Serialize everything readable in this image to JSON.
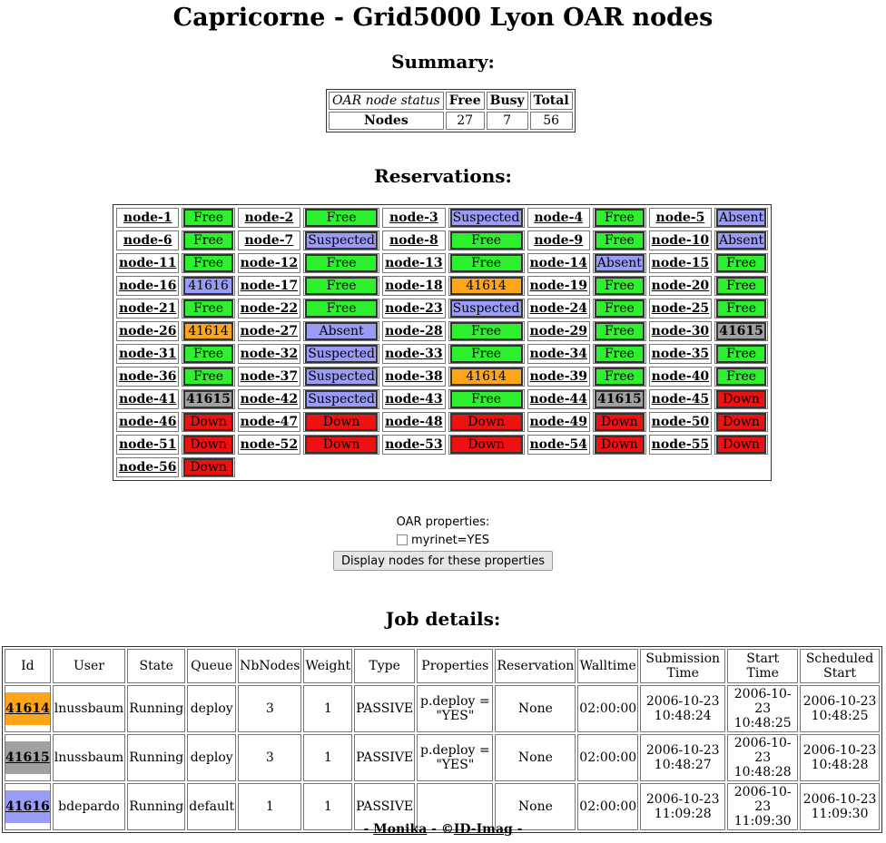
{
  "title": "Capricorne - Grid5000 Lyon OAR nodes",
  "summary": {
    "heading": "Summary:",
    "headers": [
      "OAR node status",
      "Free",
      "Busy",
      "Total"
    ],
    "row_label": "Nodes",
    "free": "27",
    "busy": "7",
    "total": "56"
  },
  "reservations": {
    "heading": "Reservations:",
    "nodes": [
      {
        "name": "node-1",
        "state": "Free",
        "kind": "free"
      },
      {
        "name": "node-2",
        "state": "Free",
        "kind": "free"
      },
      {
        "name": "node-3",
        "state": "Suspected",
        "kind": "suspected"
      },
      {
        "name": "node-4",
        "state": "Free",
        "kind": "free"
      },
      {
        "name": "node-5",
        "state": "Absent",
        "kind": "absent"
      },
      {
        "name": "node-6",
        "state": "Free",
        "kind": "free"
      },
      {
        "name": "node-7",
        "state": "Suspected",
        "kind": "suspected"
      },
      {
        "name": "node-8",
        "state": "Free",
        "kind": "free"
      },
      {
        "name": "node-9",
        "state": "Free",
        "kind": "free"
      },
      {
        "name": "node-10",
        "state": "Absent",
        "kind": "absent"
      },
      {
        "name": "node-11",
        "state": "Free",
        "kind": "free"
      },
      {
        "name": "node-12",
        "state": "Free",
        "kind": "free"
      },
      {
        "name": "node-13",
        "state": "Free",
        "kind": "free"
      },
      {
        "name": "node-14",
        "state": "Absent",
        "kind": "absent"
      },
      {
        "name": "node-15",
        "state": "Free",
        "kind": "free"
      },
      {
        "name": "node-16",
        "state": "41616",
        "kind": "jobP"
      },
      {
        "name": "node-17",
        "state": "Free",
        "kind": "free"
      },
      {
        "name": "node-18",
        "state": "41614",
        "kind": "jobO"
      },
      {
        "name": "node-19",
        "state": "Free",
        "kind": "free"
      },
      {
        "name": "node-20",
        "state": "Free",
        "kind": "free"
      },
      {
        "name": "node-21",
        "state": "Free",
        "kind": "free"
      },
      {
        "name": "node-22",
        "state": "Free",
        "kind": "free"
      },
      {
        "name": "node-23",
        "state": "Suspected",
        "kind": "suspected"
      },
      {
        "name": "node-24",
        "state": "Free",
        "kind": "free"
      },
      {
        "name": "node-25",
        "state": "Free",
        "kind": "free"
      },
      {
        "name": "node-26",
        "state": "41614",
        "kind": "jobO"
      },
      {
        "name": "node-27",
        "state": "Absent",
        "kind": "absent"
      },
      {
        "name": "node-28",
        "state": "Free",
        "kind": "free"
      },
      {
        "name": "node-29",
        "state": "Free",
        "kind": "free"
      },
      {
        "name": "node-30",
        "state": "41615",
        "kind": "jobG"
      },
      {
        "name": "node-31",
        "state": "Free",
        "kind": "free"
      },
      {
        "name": "node-32",
        "state": "Suspected",
        "kind": "suspected"
      },
      {
        "name": "node-33",
        "state": "Free",
        "kind": "free"
      },
      {
        "name": "node-34",
        "state": "Free",
        "kind": "free"
      },
      {
        "name": "node-35",
        "state": "Free",
        "kind": "free"
      },
      {
        "name": "node-36",
        "state": "Free",
        "kind": "free"
      },
      {
        "name": "node-37",
        "state": "Suspected",
        "kind": "suspected"
      },
      {
        "name": "node-38",
        "state": "41614",
        "kind": "jobO"
      },
      {
        "name": "node-39",
        "state": "Free",
        "kind": "free"
      },
      {
        "name": "node-40",
        "state": "Free",
        "kind": "free"
      },
      {
        "name": "node-41",
        "state": "41615",
        "kind": "jobG"
      },
      {
        "name": "node-42",
        "state": "Suspected",
        "kind": "suspected"
      },
      {
        "name": "node-43",
        "state": "Free",
        "kind": "free"
      },
      {
        "name": "node-44",
        "state": "41615",
        "kind": "jobG"
      },
      {
        "name": "node-45",
        "state": "Down",
        "kind": "down"
      },
      {
        "name": "node-46",
        "state": "Down",
        "kind": "down"
      },
      {
        "name": "node-47",
        "state": "Down",
        "kind": "down"
      },
      {
        "name": "node-48",
        "state": "Down",
        "kind": "down"
      },
      {
        "name": "node-49",
        "state": "Down",
        "kind": "down"
      },
      {
        "name": "node-50",
        "state": "Down",
        "kind": "down"
      },
      {
        "name": "node-51",
        "state": "Down",
        "kind": "down"
      },
      {
        "name": "node-52",
        "state": "Down",
        "kind": "down"
      },
      {
        "name": "node-53",
        "state": "Down",
        "kind": "down"
      },
      {
        "name": "node-54",
        "state": "Down",
        "kind": "down"
      },
      {
        "name": "node-55",
        "state": "Down",
        "kind": "down"
      },
      {
        "name": "node-56",
        "state": "Down",
        "kind": "down"
      }
    ]
  },
  "properties": {
    "title": "OAR properties:",
    "checkbox_label": "myrinet=YES",
    "checked": false,
    "button_label": "Display nodes for these properties"
  },
  "jobs": {
    "heading": "Job details:",
    "headers": [
      "Id",
      "User",
      "State",
      "Queue",
      "NbNodes",
      "Weight",
      "Type",
      "Properties",
      "Reservation",
      "Walltime",
      "Submission Time",
      "Start Time",
      "Scheduled Start"
    ],
    "rows": [
      {
        "id": "41614",
        "color": "#ffa51a",
        "user": "lnussbaum",
        "state": "Running",
        "queue": "deploy",
        "nbnodes": "3",
        "weight": "1",
        "type": "PASSIVE",
        "properties": "p.deploy = \"YES\"",
        "reservation": "None",
        "walltime": "02:00:00",
        "submission": "2006-10-23 10:48:24",
        "start": "2006-10-23 10:48:25",
        "scheduled": "2006-10-23 10:48:25"
      },
      {
        "id": "41615",
        "color": "#a0a0a0",
        "user": "lnussbaum",
        "state": "Running",
        "queue": "deploy",
        "nbnodes": "3",
        "weight": "1",
        "type": "PASSIVE",
        "properties": "p.deploy = \"YES\"",
        "reservation": "None",
        "walltime": "02:00:00",
        "submission": "2006-10-23 10:48:27",
        "start": "2006-10-23 10:48:28",
        "scheduled": "2006-10-23 10:48:28"
      },
      {
        "id": "41616",
        "color": "#9b9bf8",
        "user": "bdepardo",
        "state": "Running",
        "queue": "default",
        "nbnodes": "1",
        "weight": "1",
        "type": "PASSIVE",
        "properties": "",
        "reservation": "None",
        "walltime": "02:00:00",
        "submission": "2006-10-23 11:09:28",
        "start": "2006-10-23 11:09:30",
        "scheduled": "2006-10-23 11:09:30"
      }
    ]
  },
  "footer": {
    "prefix": "- ",
    "link1": "Monika",
    "sep": " - ©",
    "link2": "ID-Imag",
    "suffix": " -"
  }
}
